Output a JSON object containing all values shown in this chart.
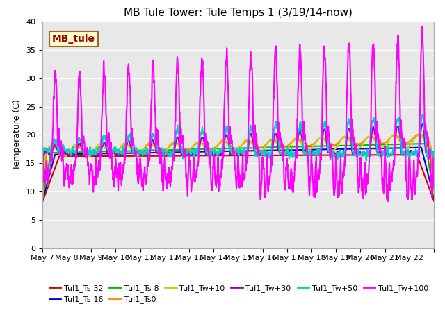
{
  "title": "MB Tule Tower: Tule Temps 1 (3/19/14-now)",
  "ylabel": "Temperature (C)",
  "ylim": [
    0,
    40
  ],
  "yticks": [
    0,
    5,
    10,
    15,
    20,
    25,
    30,
    35,
    40
  ],
  "bg_color": "#e8e8e8",
  "xtick_labels": [
    "May 7",
    "May 8",
    "May 9",
    "May 10",
    "May 11",
    "May 12",
    "May 13",
    "May 14",
    "May 15",
    "May 16",
    "May 17",
    "May 18",
    "May 19",
    "May 20",
    "May 21",
    "May 22"
  ],
  "series": [
    {
      "label": "Tul1_Ts-32",
      "color": "#cc0000"
    },
    {
      "label": "Tul1_Ts-16",
      "color": "#0000cc"
    },
    {
      "label": "Tul1_Ts-8",
      "color": "#00bb00"
    },
    {
      "label": "Tul1_Ts0",
      "color": "#ff8800"
    },
    {
      "label": "Tul1_Tw+10",
      "color": "#cccc00"
    },
    {
      "label": "Tul1_Tw+30",
      "color": "#9900cc"
    },
    {
      "label": "Tul1_Tw+50",
      "color": "#00cccc"
    },
    {
      "label": "Tul1_Tw+100",
      "color": "#ff00ff"
    }
  ],
  "legend_box_facecolor": "#ffffcc",
  "legend_box_edgecolor": "#996633",
  "legend_box_textcolor": "#990000",
  "legend_box_label": "MB_tule",
  "title_fontsize": 11,
  "axis_fontsize": 9,
  "tick_fontsize": 8,
  "legend_fontsize": 8
}
